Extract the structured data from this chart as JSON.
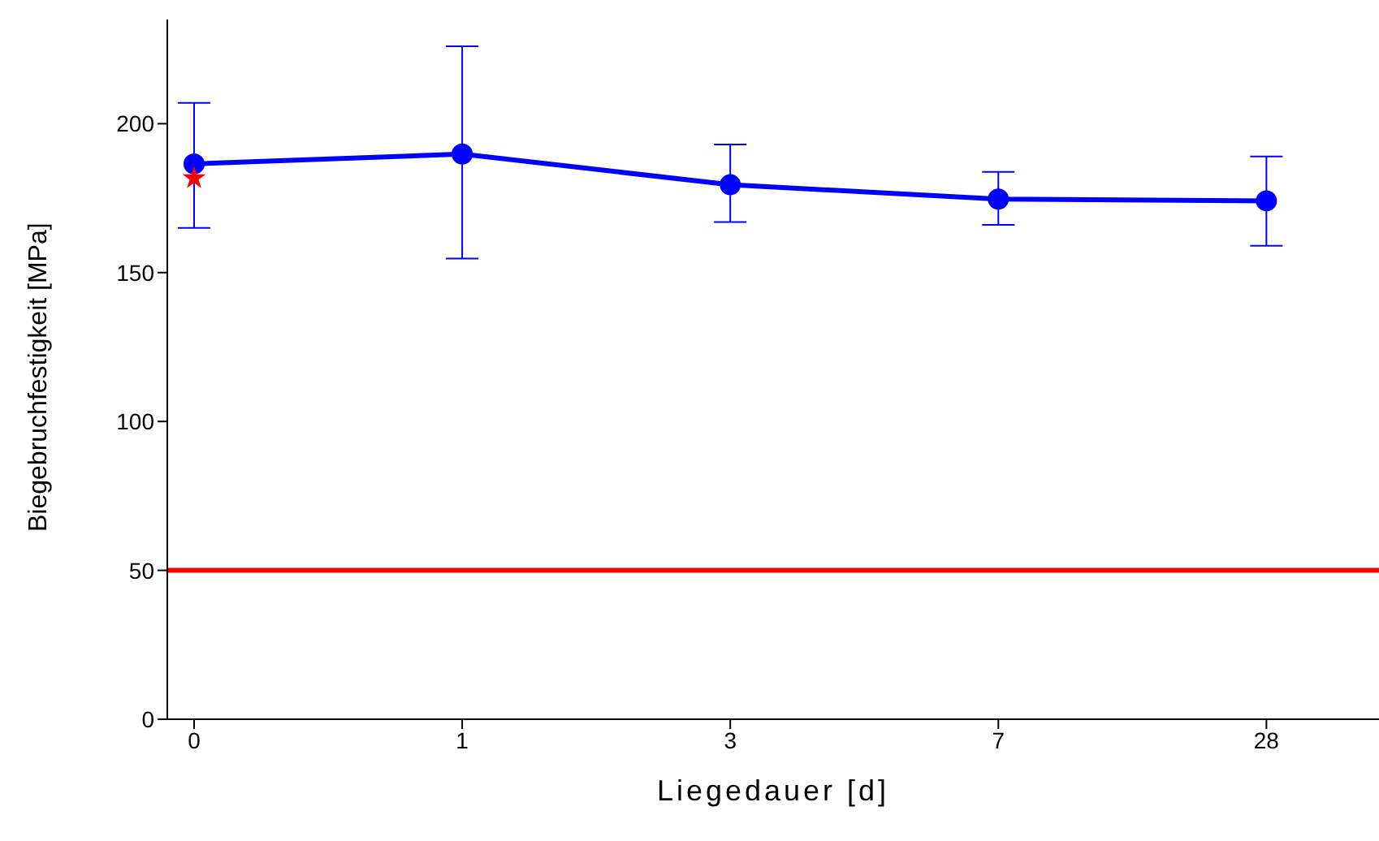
{
  "chart_data": {
    "type": "line",
    "xlabel": "Liegedauer [d]",
    "ylabel": "Biegebruchfestigkeit [MPa]",
    "categories": [
      "0",
      "1",
      "3",
      "7",
      "28"
    ],
    "series": [
      {
        "type": "line",
        "color": "#0000ff",
        "marker": "circle",
        "values": [
          186.5,
          189.8,
          179.5,
          174.7,
          174.1
        ],
        "errors": [
          [
            165,
            207
          ],
          [
            154.7,
            226
          ],
          [
            167,
            193
          ],
          [
            166,
            183.8
          ],
          [
            159,
            189
          ]
        ]
      },
      {
        "type": "scatter",
        "color": "#ff0000",
        "marker": "star",
        "x": [
          "0"
        ],
        "values": [
          181.7
        ]
      }
    ],
    "ylim": [
      0,
      235
    ],
    "yticks": [
      0,
      50,
      100,
      150,
      200
    ],
    "ref_lines": [
      {
        "axis": "y",
        "value": 50,
        "color": "#ff0000"
      }
    ]
  }
}
